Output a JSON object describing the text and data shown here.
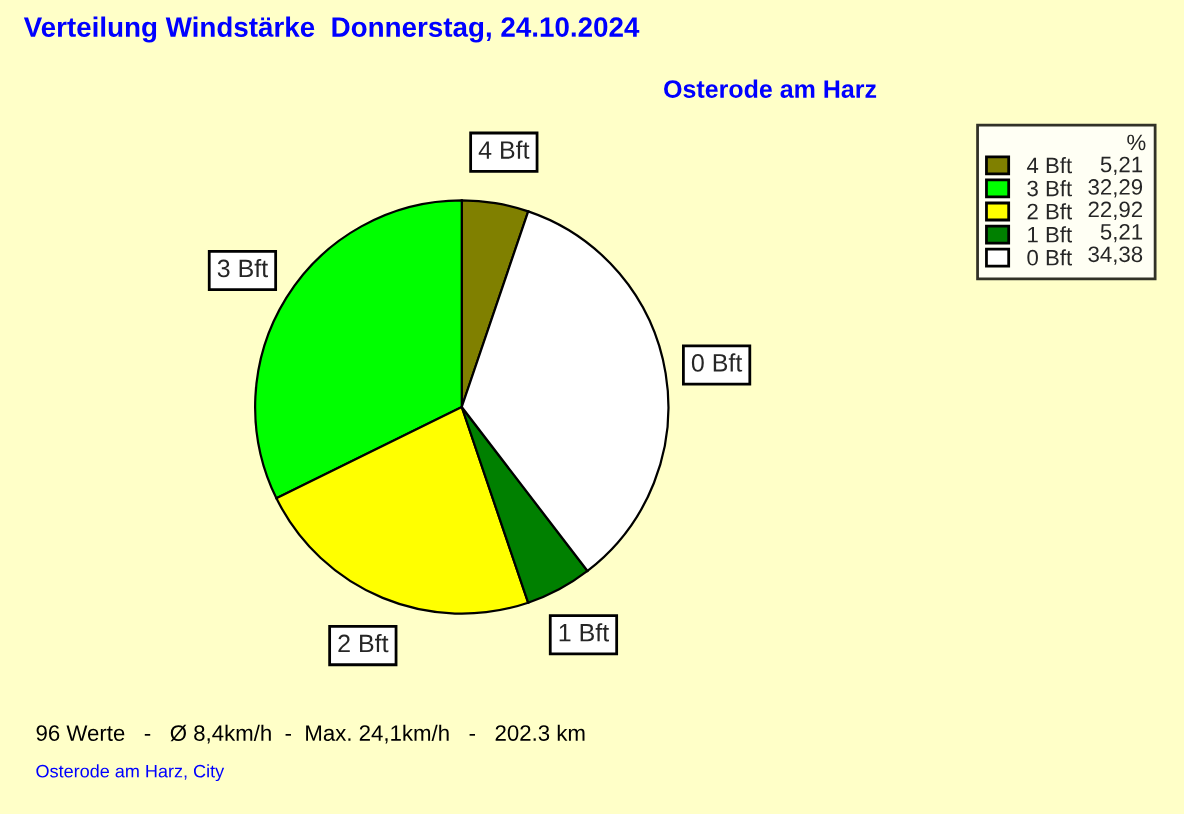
{
  "chart_data": {
    "type": "pie",
    "title": "Verteilung Windstärke  Donnerstag, 24.10.2024",
    "subtitle": "Osterode am Harz",
    "legend_title": "%",
    "categories": [
      "4 Bft",
      "3 Bft",
      "2 Bft",
      "1 Bft",
      "0 Bft"
    ],
    "values": [
      5.21,
      32.29,
      22.92,
      5.21,
      34.38
    ],
    "value_labels": [
      "5,21",
      "32,29",
      "22,92",
      "5,21",
      "34,38"
    ],
    "colors": [
      "#808000",
      "#00ff00",
      "#ffff00",
      "#008000",
      "#ffffff"
    ],
    "legend": "right",
    "annotations": [
      "96 Werte   -   Ø 8,4km/h  -  Max. 24,1km/h   -   202.3 km",
      "Osterode am Harz, City"
    ]
  }
}
